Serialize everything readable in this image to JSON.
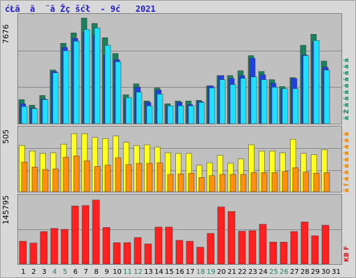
{
  "title": "ćŁă  ă  ¨ă Žç šćł  - 9ć   2021",
  "panels": {
    "top": {
      "max_label": "7676"
    },
    "middle": {
      "max_label": "505"
    },
    "bottom": {
      "max_label": "145795"
    }
  },
  "side_labels": {
    "top": "ă  Ź ă ă ă ă  ă ă ă ă",
    "middle": "ă  ľ ă ă ă ă ă ă ă ă",
    "bottom": "KB F"
  },
  "colors": {
    "background": "#c0c0c0",
    "gridline": "#888888",
    "top_dark": "#1a8060",
    "top_mid": "#2040e0",
    "top_light": "#20e0ff",
    "mid_yellow": "#ffff20",
    "mid_orange": "#ff9010",
    "bottom_red": "#ff2020",
    "weekday_label": "#000000",
    "weekend_label": "#208060"
  },
  "chart_data": [
    {
      "type": "bar",
      "panel": "top",
      "ylim": [
        0,
        7676
      ],
      "categories": [
        "1",
        "2",
        "3",
        "4",
        "5",
        "6",
        "7",
        "8",
        "9",
        "10",
        "11",
        "12",
        "13",
        "14",
        "15",
        "16",
        "17",
        "18",
        "19",
        "20",
        "21",
        "22",
        "23",
        "24",
        "25",
        "26",
        "27",
        "28",
        "29",
        "30",
        "31"
      ],
      "weekend_days": [
        4,
        5,
        11,
        12,
        18,
        19,
        25,
        26
      ],
      "series": [
        {
          "values": [
            1750,
            1350,
            2050,
            3900,
            5850,
            6600,
            7676,
            7280,
            6250,
            5100,
            2100,
            2900,
            1650,
            2600,
            1450,
            1650,
            1650,
            1700,
            2750,
            3500,
            3500,
            3850,
            4950,
            3800,
            3200,
            2700,
            3350,
            5700,
            6500,
            4550,
            0
          ]
        },
        {
          "values": [
            1450,
            1150,
            1800,
            3800,
            5550,
            6200,
            6650,
            6450,
            5000,
            4650,
            1800,
            2650,
            1550,
            2450,
            1300,
            1550,
            1400,
            1600,
            2750,
            3500,
            3300,
            3500,
            4750,
            3550,
            2950,
            2500,
            3300,
            5000,
            5950,
            4100,
            0
          ]
        },
        {
          "values": [
            1250,
            1100,
            1750,
            3700,
            5300,
            6000,
            6850,
            6950,
            5700,
            4500,
            1900,
            2300,
            1300,
            2150,
            1300,
            1300,
            1300,
            1550,
            2600,
            3200,
            2850,
            3300,
            3400,
            3200,
            2650,
            2550,
            2550,
            4950,
            6050,
            3900,
            0
          ]
        }
      ]
    },
    {
      "type": "bar",
      "panel": "middle",
      "ylim": [
        0,
        505
      ],
      "categories": [
        "1",
        "2",
        "3",
        "4",
        "5",
        "6",
        "7",
        "8",
        "9",
        "10",
        "11",
        "12",
        "13",
        "14",
        "15",
        "16",
        "17",
        "18",
        "19",
        "20",
        "21",
        "22",
        "23",
        "24",
        "25",
        "26",
        "27",
        "28",
        "29",
        "30",
        "31"
      ],
      "series": [
        {
          "values": [
            375,
            330,
            310,
            315,
            385,
            470,
            470,
            440,
            430,
            450,
            400,
            375,
            380,
            360,
            315,
            310,
            310,
            215,
            235,
            295,
            230,
            265,
            380,
            330,
            330,
            315,
            425,
            310,
            300,
            340,
            0
          ]
        },
        {
          "values": [
            240,
            200,
            180,
            185,
            280,
            290,
            250,
            205,
            215,
            275,
            220,
            230,
            230,
            235,
            140,
            145,
            150,
            115,
            130,
            140,
            140,
            140,
            155,
            155,
            155,
            165,
            195,
            160,
            150,
            155,
            0
          ]
        }
      ]
    },
    {
      "type": "bar",
      "panel": "bottom",
      "ylim": [
        0,
        145795
      ],
      "categories": [
        "1",
        "2",
        "3",
        "4",
        "5",
        "6",
        "7",
        "8",
        "9",
        "10",
        "11",
        "12",
        "13",
        "14",
        "15",
        "16",
        "17",
        "18",
        "19",
        "20",
        "21",
        "22",
        "23",
        "24",
        "25",
        "26",
        "27",
        "28",
        "29",
        "30",
        "31"
      ],
      "series": [
        {
          "values": [
            50000,
            46000,
            71000,
            78000,
            76000,
            127000,
            128000,
            140000,
            80000,
            47000,
            47000,
            58000,
            44000,
            81000,
            81000,
            52000,
            50000,
            37000,
            67000,
            125000,
            115000,
            72000,
            73000,
            87000,
            48000,
            48000,
            71000,
            92000,
            62000,
            85000,
            0
          ]
        }
      ]
    }
  ]
}
